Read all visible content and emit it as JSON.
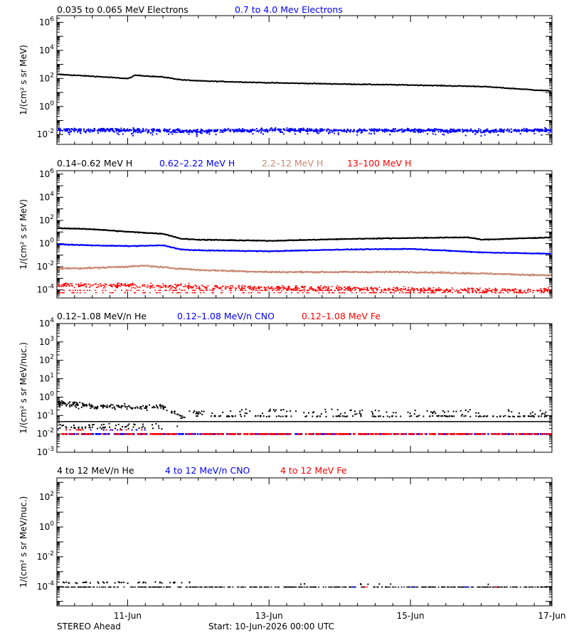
{
  "chart_data": [
    {
      "type": "scatter",
      "panel": "electrons",
      "yscale": "log",
      "ylabel": "1/(cm² s sr MeV)",
      "ylim": [
        0.002,
        3000000
      ],
      "ytick_exponents": [
        -2,
        0,
        2,
        4,
        6
      ],
      "series": [
        {
          "name": "0.035 to 0.065 MeV Electrons",
          "color": "#000000",
          "x": [
            0,
            0.5,
            1.0,
            1.1,
            1.25,
            1.5,
            1.75,
            2.0,
            3.0,
            4.0,
            5.0,
            6.0,
            7.0
          ],
          "y": [
            220,
            160,
            110,
            190,
            170,
            140,
            90,
            75,
            55,
            45,
            38,
            30,
            14
          ]
        },
        {
          "name": "0.7 to 4.0 Mev Electrons",
          "color": "#0000ff",
          "x": [
            0,
            1,
            2,
            3,
            4,
            5,
            6,
            7
          ],
          "y": [
            0.025,
            0.023,
            0.02,
            0.024,
            0.022,
            0.023,
            0.02,
            0.024
          ]
        }
      ]
    },
    {
      "type": "scatter",
      "panel": "protons",
      "yscale": "log",
      "ylabel": "1/(cm² s sr MeV)",
      "ylim": [
        2e-05,
        2000000
      ],
      "ytick_exponents": [
        -4,
        -2,
        0,
        2,
        4,
        6
      ],
      "series": [
        {
          "name": "0.14–0.62 MeV H",
          "color": "#000000",
          "x": [
            0,
            0.5,
            1.0,
            1.5,
            1.75,
            2.0,
            3.0,
            4.0,
            4.5,
            5.0,
            5.8,
            6.0,
            7.0
          ],
          "y": [
            25,
            20,
            12,
            8,
            3,
            2.5,
            2,
            2.8,
            3.2,
            3.5,
            4,
            2.5,
            4
          ]
        },
        {
          "name": "0.62–2.22 MeV H",
          "color": "#0000ff",
          "x": [
            0,
            0.5,
            1.0,
            1.5,
            1.75,
            2.0,
            3.0,
            4.0,
            5.0,
            6.0,
            7.0
          ],
          "y": [
            1.0,
            0.8,
            0.7,
            0.8,
            0.35,
            0.3,
            0.25,
            0.35,
            0.4,
            0.2,
            0.15
          ]
        },
        {
          "name": "2.2–12 MeV H",
          "color": "#c88870",
          "x": [
            0,
            0.5,
            1.0,
            1.25,
            1.5,
            2.0,
            3.0,
            4.0,
            5.0,
            6.0,
            7.0
          ],
          "y": [
            0.008,
            0.009,
            0.012,
            0.014,
            0.01,
            0.006,
            0.004,
            0.004,
            0.004,
            0.003,
            0.002
          ]
        },
        {
          "name": "13–100 MeV H",
          "color": "#ff0000",
          "x": [
            0,
            1,
            2,
            3,
            4,
            5,
            6,
            7
          ],
          "y": [
            0.0003,
            0.00025,
            0.0002,
            0.00015,
            0.00015,
            0.00012,
            0.0001,
            0.0001
          ]
        }
      ]
    },
    {
      "type": "scatter",
      "panel": "intermediate-ions",
      "yscale": "log",
      "ylabel": "1/(cm² s sr MeV/nuc.)",
      "ylim": [
        0.001,
        10000
      ],
      "ytick_exponents": [
        -3,
        -2,
        -1,
        0,
        1,
        2,
        3,
        4
      ],
      "series": [
        {
          "name": "0.12–1.08 MeV/n He",
          "color": "#000000",
          "x": [
            0,
            0.5,
            1.0,
            1.5,
            1.7,
            2.0,
            3.0,
            4.0,
            5.0,
            6.0,
            7.0
          ],
          "y": [
            0.5,
            0.35,
            0.3,
            0.35,
            0.12,
            0.05,
            0.05,
            0.05,
            0.05,
            0.05,
            0.05
          ]
        },
        {
          "name": "0.12–1.08 MeV/n CNO",
          "color": "#0000ff",
          "x": [
            0,
            1,
            2,
            3,
            4,
            5,
            6,
            7
          ],
          "y": [
            0.011,
            0.011,
            0.011,
            0.011,
            0.011,
            0.011,
            0.011,
            0.011
          ]
        },
        {
          "name": "0.12–1.08 MeV Fe",
          "color": "#ff0000",
          "x": [
            0,
            1,
            2,
            3,
            4,
            5,
            6,
            7
          ],
          "y": [
            0.011,
            0.011,
            0.011,
            0.011,
            0.011,
            0.011,
            0.011,
            0.011
          ]
        }
      ]
    },
    {
      "type": "scatter",
      "panel": "high-energy-ions",
      "yscale": "log",
      "ylabel": "1/(cm² s sr MeV/nuc.)",
      "ylim": [
        5e-06,
        2000
      ],
      "ytick_exponents": [
        -4,
        -2,
        0,
        2
      ],
      "series": [
        {
          "name": "4 to 12 MeV/n He",
          "color": "#000000",
          "x": [
            0,
            1,
            2,
            3,
            4,
            5,
            6,
            7
          ],
          "y": [
            0.0001,
            0.0001,
            0.0001,
            0.0001,
            0.0001,
            0.0001,
            0.0001,
            0.0001
          ]
        },
        {
          "name": "4 to 12 MeV/n CNO",
          "color": "#0000ff",
          "x": [
            4.2,
            5.0,
            5.8
          ],
          "y": [
            0.0001,
            0.0001,
            0.0001
          ]
        },
        {
          "name": "4 to 12 MeV Fe",
          "color": "#ff0000",
          "x": [
            4.35,
            6.2
          ],
          "y": [
            0.0001,
            0.0001
          ]
        }
      ]
    }
  ],
  "x_axis": {
    "tick_labels": [
      "11-Jun",
      "13-Jun",
      "15-Jun",
      "17-Jun"
    ],
    "tick_days": [
      1,
      3,
      5,
      7
    ],
    "range_days": [
      0,
      7
    ]
  },
  "footer": {
    "spacecraft": "STEREO Ahead",
    "start": "Start: 10-Jun-2026 00:00 UTC"
  }
}
